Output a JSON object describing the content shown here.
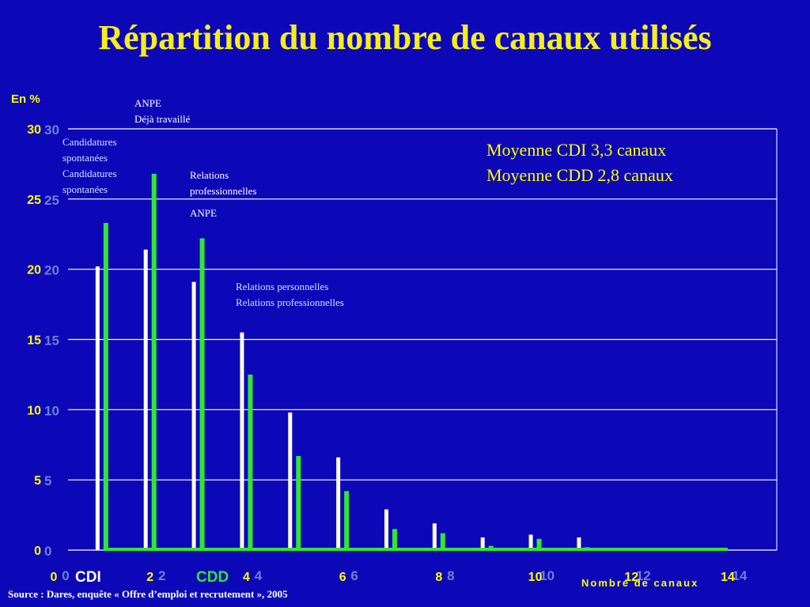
{
  "title": "Répartition du nombre de canaux utilisés",
  "annotations": {
    "anpe_top": "ANPE",
    "deja_travaille": "Déjà travaillé",
    "cand_1": "Candidatures",
    "spont_1": "spontanées",
    "cand_2": "Candidatures",
    "spont_2": "spontanées",
    "relations": "Relations",
    "professionnelles": "professionnelles",
    "anpe_3": "ANPE",
    "rel_perso": "Relations personnelles",
    "rel_pro": "Relations professionnelles"
  },
  "means": {
    "cdi": "Moyenne CDI  3,3 canaux",
    "cdd": "Moyenne CDD 2,8 canaux"
  },
  "source": "Source : Dares, enquête « Offre d’emploi et recrutement », 2005",
  "colors": {
    "background": "#0c08b8",
    "title": "#f5ee1c",
    "axis_text": "#ffff00",
    "cdi": "#ffffff",
    "cdd": "#31e631",
    "ghost_ticks": "#6e7fd6",
    "gridline": "#ffffff"
  },
  "chart_data": {
    "type": "bar",
    "ylabel": "En %",
    "xlabel": "Nombre de canaux",
    "ylim": [
      0,
      30
    ],
    "xlim": [
      0,
      14
    ],
    "y_ticks": [
      "0",
      "5",
      "10",
      "15",
      "20",
      "25",
      "30"
    ],
    "x_ticks": [
      "0",
      "2",
      "4",
      "6",
      "8",
      "10",
      "12",
      "14"
    ],
    "grid": true,
    "legend_placement": "bottom-left",
    "categories": [
      1,
      2,
      3,
      4,
      5,
      6,
      7,
      8,
      9,
      10,
      11
    ],
    "series": [
      {
        "name": "CDI",
        "values": [
          20.2,
          21.4,
          19.1,
          15.5,
          9.8,
          6.6,
          2.9,
          1.9,
          0.9,
          1.1,
          0.9
        ]
      },
      {
        "name": "CDD",
        "values": [
          23.3,
          26.8,
          22.2,
          12.5,
          6.7,
          4.2,
          1.5,
          1.2,
          0.3,
          0.8,
          0.2
        ]
      }
    ]
  }
}
